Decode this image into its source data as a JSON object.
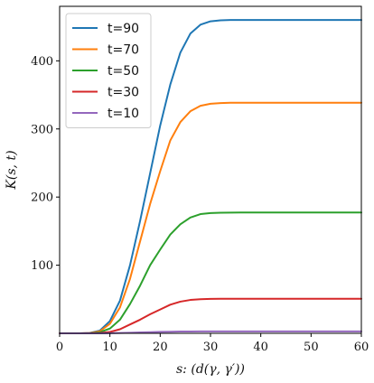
{
  "chart_data": {
    "type": "line",
    "xlabel": "s: (d(γ, γ′))",
    "ylabel": "K(s, t)",
    "xlim": [
      0,
      60
    ],
    "ylim": [
      0,
      480
    ],
    "xticks": [
      0,
      10,
      20,
      30,
      40,
      50,
      60
    ],
    "yticks": [
      100,
      200,
      300,
      400
    ],
    "grid": false,
    "legend_position": "top-left",
    "x": [
      0,
      2,
      4,
      6,
      8,
      10,
      12,
      14,
      16,
      18,
      20,
      22,
      24,
      26,
      28,
      30,
      32,
      34,
      36,
      38,
      40,
      45,
      50,
      55,
      60
    ],
    "series": [
      {
        "name": "t=90",
        "color": "#1f77b4",
        "values": [
          0,
          0,
          0,
          0.5,
          4,
          18,
          48,
          100,
          165,
          235,
          305,
          365,
          412,
          440,
          453,
          458,
          459.5,
          460,
          460,
          460,
          460,
          460,
          460,
          460,
          460
        ]
      },
      {
        "name": "t=70",
        "color": "#ff7f0e",
        "values": [
          0,
          0,
          0,
          0.4,
          3,
          14,
          38,
          80,
          135,
          190,
          238,
          283,
          310,
          326,
          334,
          337,
          338,
          338.5,
          338.5,
          338.5,
          338.5,
          338.5,
          338.5,
          338.5,
          338.5
        ]
      },
      {
        "name": "t=50",
        "color": "#2ca02c",
        "values": [
          0,
          0,
          0,
          0.2,
          1.5,
          7,
          20,
          43,
          70,
          100,
          123,
          145,
          160,
          170,
          175,
          176.5,
          177,
          177.2,
          177.3,
          177.3,
          177.3,
          177.3,
          177.3,
          177.3,
          177.3
        ]
      },
      {
        "name": "t=30",
        "color": "#d62728",
        "values": [
          0,
          0,
          0,
          0.1,
          0.5,
          2,
          6,
          13,
          20,
          28,
          35,
          42,
          46.5,
          49,
          50,
          50.5,
          50.7,
          50.8,
          50.8,
          50.8,
          50.8,
          50.8,
          50.8,
          50.8,
          50.8
        ]
      },
      {
        "name": "t=10",
        "color": "#9467bd",
        "values": [
          0,
          0,
          0,
          0,
          0,
          0.2,
          0.5,
          0.9,
          1.3,
          1.7,
          2.1,
          2.4,
          2.6,
          2.7,
          2.8,
          2.8,
          2.8,
          2.8,
          2.8,
          2.8,
          2.8,
          2.8,
          2.8,
          2.8,
          2.8
        ]
      }
    ]
  }
}
